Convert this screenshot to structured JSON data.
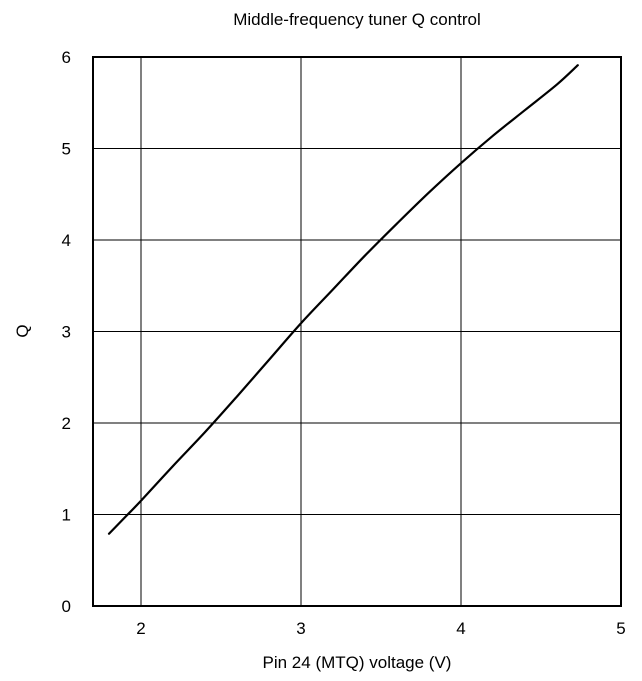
{
  "chart_data": {
    "type": "line",
    "title": "Middle-frequency tuner Q control",
    "xlabel": "Pin 24 (MTQ) voltage (V)",
    "ylabel": "Q",
    "xlim": [
      1.7,
      5
    ],
    "ylim": [
      0,
      6
    ],
    "grid": true,
    "x_ticks": [
      "2",
      "3",
      "4",
      "5"
    ],
    "y_ticks": [
      "0",
      "1",
      "2",
      "3",
      "4",
      "5",
      "6"
    ],
    "series": [
      {
        "x": [
          1.8,
          1.9,
          2.0,
          2.2,
          2.4,
          2.6,
          2.8,
          3.0,
          3.2,
          3.4,
          3.6,
          3.8,
          4.0,
          4.2,
          4.4,
          4.6,
          4.73
        ],
        "y": [
          0.79,
          0.97,
          1.15,
          1.53,
          1.9,
          2.29,
          2.69,
          3.09,
          3.46,
          3.83,
          4.18,
          4.52,
          4.84,
          5.14,
          5.42,
          5.7,
          5.91
        ]
      }
    ],
    "line_color": "#000000"
  }
}
